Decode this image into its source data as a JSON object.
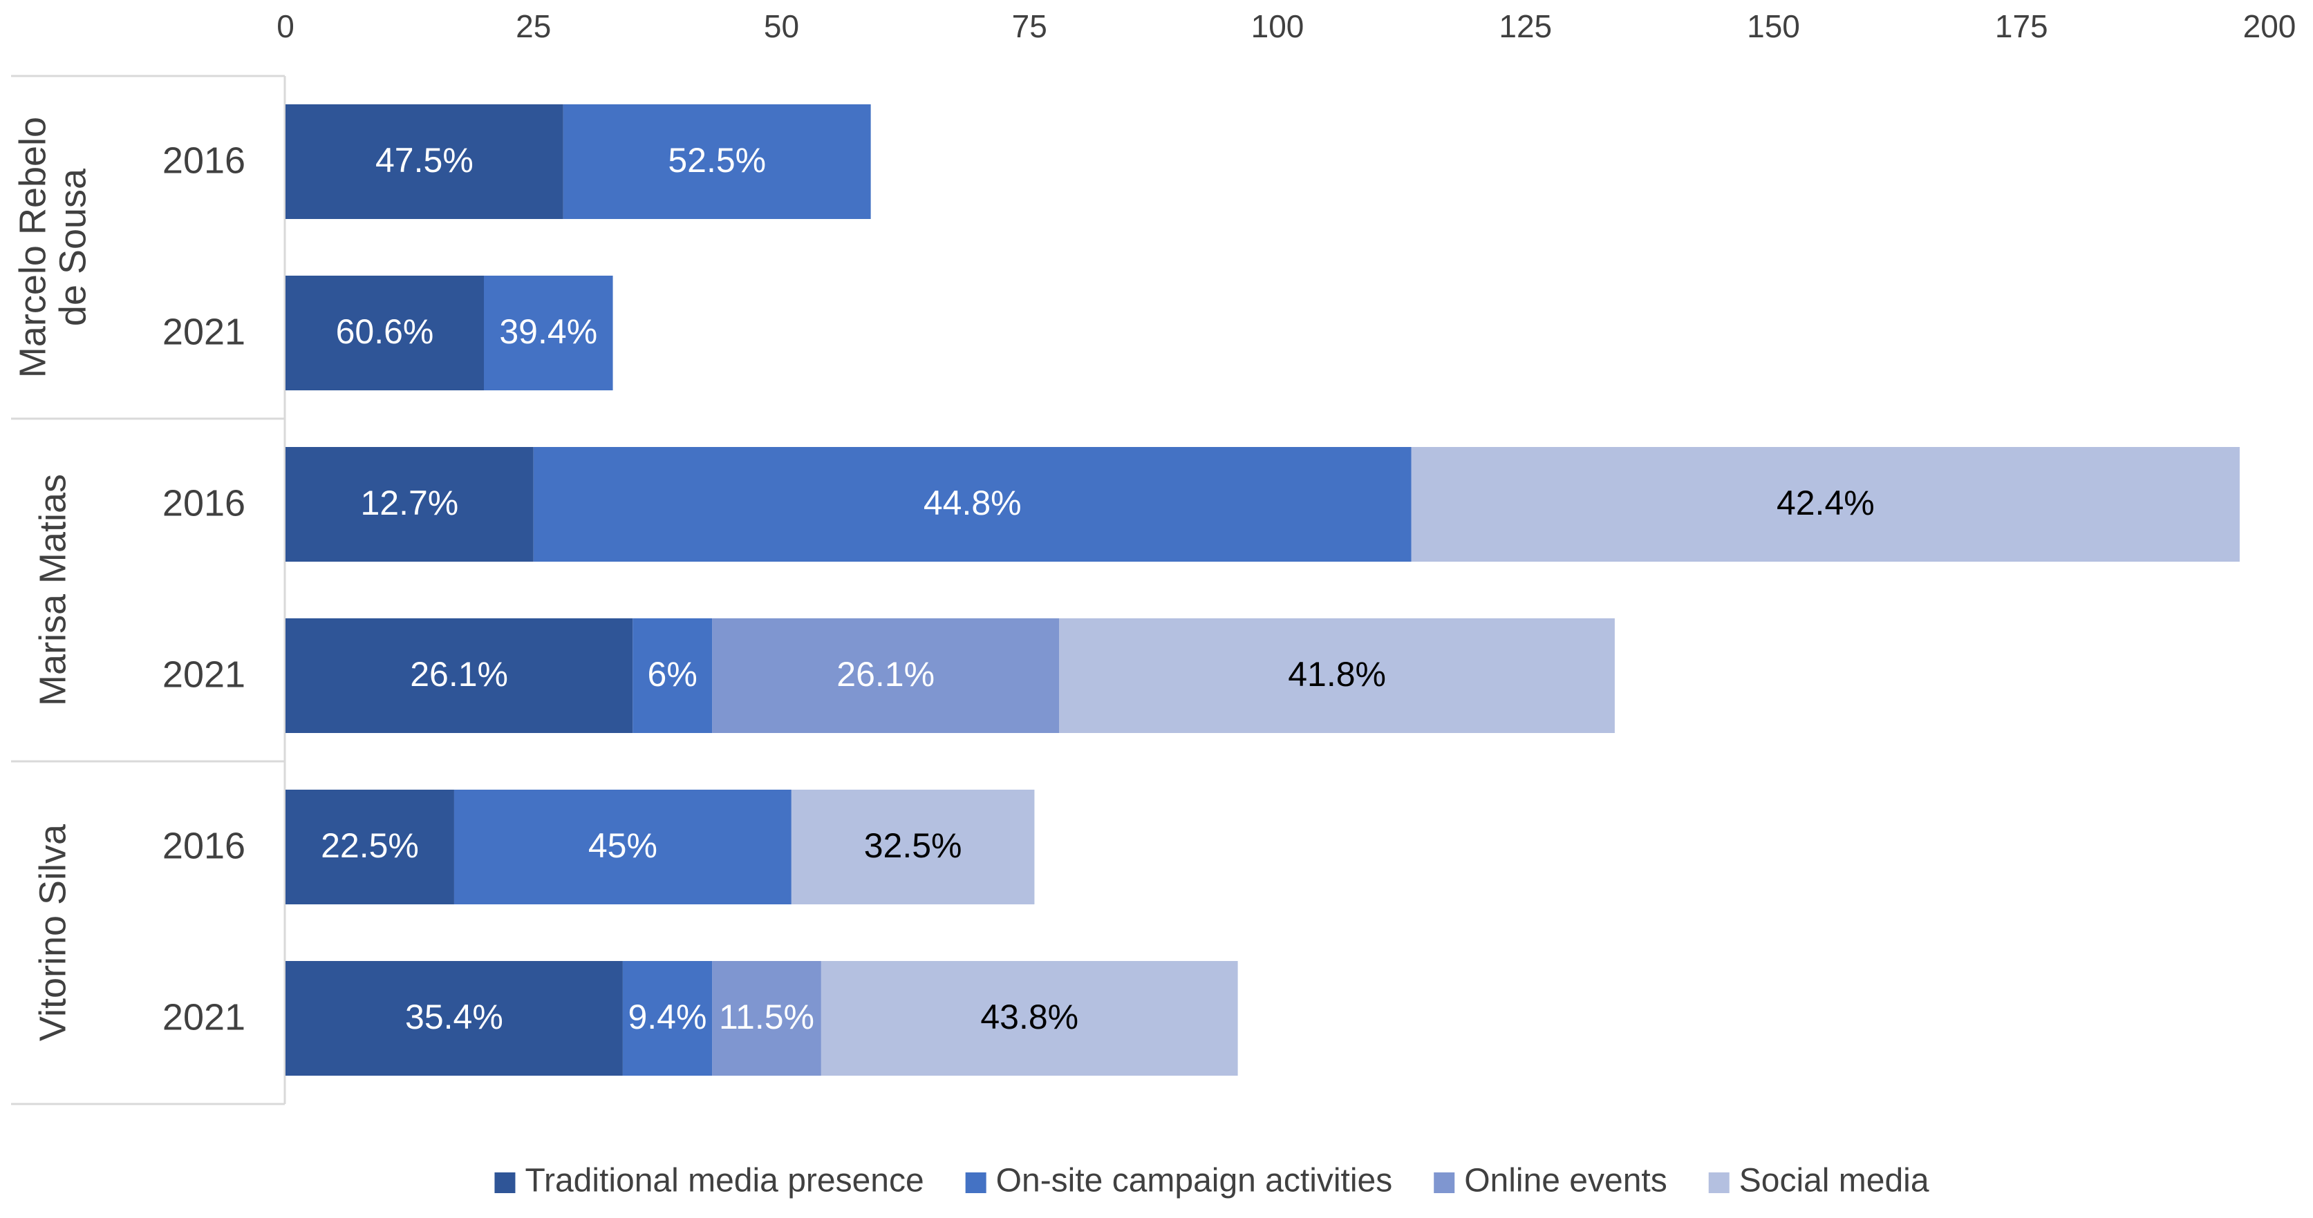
{
  "chart_data": {
    "type": "bar",
    "orientation": "horizontal",
    "stacked": true,
    "title": "",
    "xlabel": "",
    "ylabel": "",
    "xlim": [
      0,
      200
    ],
    "xticks": [
      0,
      25,
      50,
      75,
      100,
      125,
      150,
      175,
      200
    ],
    "x_axis_position": "top",
    "grid": false,
    "legend_position": "bottom",
    "series": [
      {
        "name": "Traditional media presence",
        "color": "#2f5597"
      },
      {
        "name": "On-site campaign activities",
        "color": "#4472c4"
      },
      {
        "name": "Online events",
        "color": "#7f96d0"
      },
      {
        "name": "Social media",
        "color": "#b4c0e0"
      }
    ],
    "groups": [
      {
        "candidate": "Marcelo Rebelo de Sousa",
        "candidate_lines": [
          "Marcelo Rebelo",
          "de Sousa"
        ],
        "rows": [
          {
            "year": "2016",
            "segments": [
              {
                "series": 0,
                "value": 28,
                "label": "47.5%"
              },
              {
                "series": 1,
                "value": 31,
                "label": "52.5%"
              }
            ]
          },
          {
            "year": "2021",
            "segments": [
              {
                "series": 0,
                "value": 20,
                "label": "60.6%"
              },
              {
                "series": 1,
                "value": 13,
                "label": "39.4%"
              }
            ]
          }
        ]
      },
      {
        "candidate": "Marisa Matias",
        "candidate_lines": [
          "Marisa Matias"
        ],
        "rows": [
          {
            "year": "2016",
            "segments": [
              {
                "series": 0,
                "value": 25,
                "label": "12.7%"
              },
              {
                "series": 1,
                "value": 88.5,
                "label": "44.8%"
              },
              {
                "series": 3,
                "value": 83.5,
                "label": "42.4%"
              }
            ]
          },
          {
            "year": "2021",
            "segments": [
              {
                "series": 0,
                "value": 35,
                "label": "26.1%"
              },
              {
                "series": 1,
                "value": 8,
                "label": "6%"
              },
              {
                "series": 2,
                "value": 35,
                "label": "26.1%"
              },
              {
                "series": 3,
                "value": 56,
                "label": "41.8%"
              }
            ]
          }
        ]
      },
      {
        "candidate": "Vitorino Silva",
        "candidate_lines": [
          "Vitorino Silva"
        ],
        "rows": [
          {
            "year": "2016",
            "segments": [
              {
                "series": 0,
                "value": 17,
                "label": "22.5%"
              },
              {
                "series": 1,
                "value": 34,
                "label": "45%"
              },
              {
                "series": 3,
                "value": 24.5,
                "label": "32.5%"
              }
            ]
          },
          {
            "year": "2021",
            "segments": [
              {
                "series": 0,
                "value": 34,
                "label": "35.4%"
              },
              {
                "series": 1,
                "value": 9,
                "label": "9.4%"
              },
              {
                "series": 2,
                "value": 11,
                "label": "11.5%"
              },
              {
                "series": 3,
                "value": 42,
                "label": "43.8%"
              }
            ]
          }
        ]
      }
    ]
  }
}
